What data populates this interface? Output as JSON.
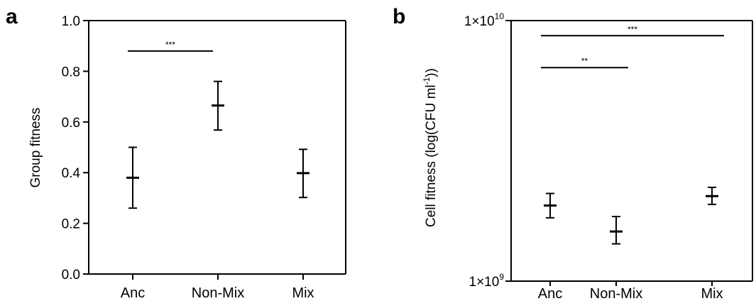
{
  "chart_data": [
    {
      "panel": "a",
      "type": "scatter",
      "categories": [
        "Anc",
        "Non-Mix",
        "Mix"
      ],
      "xlabel": "",
      "ylabel": "Group fitness",
      "ylim": [
        0,
        1
      ],
      "yticks": [
        "0.0",
        "0.2",
        "0.4",
        "0.6",
        "0.8",
        "1.0"
      ],
      "ytick_values": [
        0,
        0.2,
        0.4,
        0.6,
        0.8,
        1.0
      ],
      "series": [
        {
          "values": [
            0.38,
            0.665,
            0.398
          ],
          "error_low": [
            0.26,
            0.568,
            0.302
          ],
          "error_high": [
            0.5,
            0.76,
            0.492
          ]
        }
      ],
      "significance": [
        {
          "from": 0,
          "to": 1,
          "label": "***",
          "y": 0.88
        }
      ],
      "grid": false
    },
    {
      "panel": "b",
      "type": "scatter",
      "scale": "log",
      "categories": [
        "Anc",
        "Non-Mix",
        "Mix"
      ],
      "xlabel": "",
      "ylabel": "Cell fitness (log(CFU ml-1))",
      "ylabel_parts": [
        "Cell fitness (log(CFU ml",
        "-1",
        "))"
      ],
      "ylim": [
        1000000000,
        10000000000
      ],
      "yticks": [
        {
          "value": 1000000000,
          "base": "1×10",
          "exp": "9"
        },
        {
          "value": 10000000000,
          "base": "1×10",
          "exp": "10"
        }
      ],
      "series": [
        {
          "values": [
            1950000000,
            1550000000,
            2120000000
          ],
          "error_low": [
            1750000000,
            1390000000,
            1970000000
          ],
          "error_high": [
            2170000000,
            1770000000,
            2290000000
          ]
        }
      ],
      "significance": [
        {
          "from": 0,
          "to": 1,
          "label": "**",
          "y": 6600000000
        },
        {
          "from": 0,
          "to": 2,
          "label": "***",
          "y": 8750000000
        }
      ],
      "grid": false
    }
  ]
}
